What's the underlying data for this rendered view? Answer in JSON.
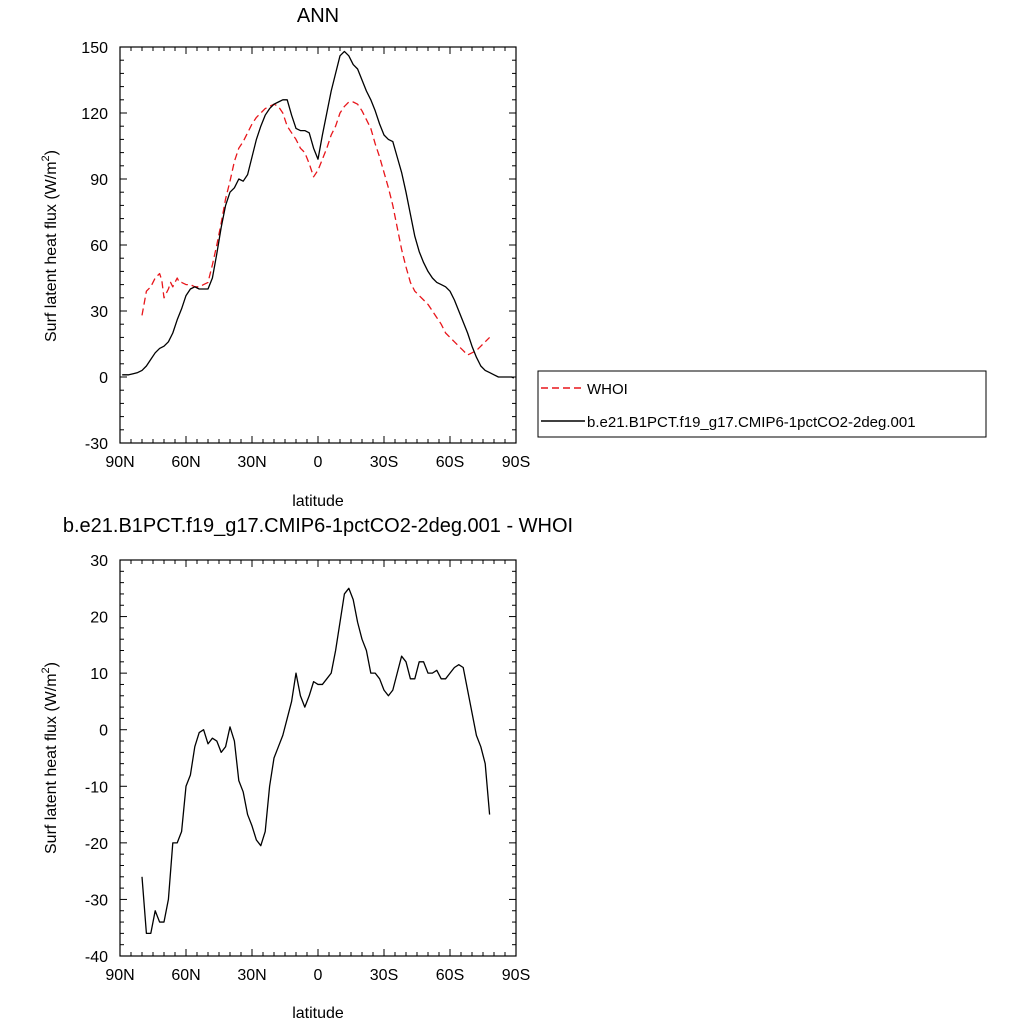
{
  "colors": {
    "model": "#000000",
    "obs": "#e8161b",
    "background": "#ffffff"
  },
  "chart_data": [
    {
      "type": "line",
      "title": "ANN",
      "xlabel": "latitude",
      "ylabel": "Surf latent heat flux (W/m",
      "ylabel_sup": "2",
      "ylabel_end": ")",
      "xlim": [
        90,
        -90
      ],
      "ylim": [
        -30,
        150
      ],
      "xticks": [
        90,
        60,
        30,
        0,
        -30,
        -60,
        -90
      ],
      "xtick_labels": [
        "90N",
        "60N",
        "30N",
        "0",
        "30S",
        "60S",
        "90S"
      ],
      "yticks": [
        -30,
        0,
        30,
        60,
        90,
        120,
        150
      ],
      "ytick_labels": [
        "-30",
        "0",
        "30",
        "60",
        "90",
        "120",
        "150"
      ],
      "grid": false,
      "legend_position": "right",
      "series": [
        {
          "name": "WHOI",
          "style": "dashed",
          "color": "#e8161b",
          "x": [
            80,
            78,
            76,
            74,
            72,
            71,
            70,
            68,
            67,
            66,
            65,
            64,
            63,
            62,
            60,
            58,
            56,
            54,
            52,
            50,
            48,
            46,
            44,
            42,
            40,
            38,
            36,
            34,
            32,
            30,
            28,
            26,
            24,
            22,
            20,
            18,
            16,
            14,
            12,
            10,
            8,
            6,
            4,
            2,
            0,
            -2,
            -4,
            -6,
            -8,
            -10,
            -12,
            -14,
            -16,
            -18,
            -20,
            -22,
            -24,
            -26,
            -28,
            -30,
            -32,
            -34,
            -36,
            -38,
            -40,
            -42,
            -44,
            -46,
            -48,
            -50,
            -52,
            -54,
            -56,
            -58,
            -60,
            -62,
            -64,
            -66,
            -68,
            -70,
            -72,
            -74,
            -76,
            -78
          ],
          "y": [
            28,
            39,
            41,
            45,
            47,
            44,
            36,
            40,
            43,
            41,
            43,
            45,
            43,
            43,
            42,
            42,
            41,
            41,
            42,
            43,
            51,
            60,
            70,
            81,
            89,
            98,
            104,
            107,
            111,
            115,
            118,
            120,
            122,
            123,
            124,
            123,
            120,
            114,
            111,
            108,
            104,
            102,
            97,
            91,
            94,
            99,
            104,
            110,
            114,
            120,
            123,
            125,
            125,
            124,
            121,
            117,
            113,
            106,
            100,
            93,
            86,
            78,
            68,
            58,
            50,
            43,
            39,
            37,
            35,
            33,
            30,
            27,
            24,
            20,
            18,
            16,
            14,
            12,
            10,
            11,
            12,
            14,
            16,
            18
          ]
        },
        {
          "name": "b.e21.B1PCT.f19_g17.CMIP6-1pctCO2-2deg.001",
          "style": "solid",
          "color": "#000000",
          "x": [
            89,
            88,
            86,
            84,
            82,
            80,
            78,
            76,
            74,
            72,
            70,
            68,
            66,
            64,
            62,
            60,
            58,
            56,
            54,
            52,
            50,
            48,
            46,
            44,
            42,
            40,
            38,
            36,
            34,
            32,
            30,
            28,
            26,
            24,
            22,
            20,
            18,
            16,
            14,
            12,
            10,
            8,
            6,
            4,
            2,
            0,
            -2,
            -4,
            -6,
            -8,
            -10,
            -12,
            -14,
            -16,
            -18,
            -20,
            -22,
            -24,
            -26,
            -28,
            -30,
            -32,
            -34,
            -36,
            -38,
            -40,
            -42,
            -44,
            -46,
            -48,
            -50,
            -52,
            -54,
            -56,
            -58,
            -60,
            -62,
            -64,
            -66,
            -68,
            -70,
            -72,
            -74,
            -76,
            -78,
            -80,
            -82,
            -84,
            -86,
            -88,
            -89
          ],
          "y": [
            1,
            1,
            1,
            1.5,
            2,
            3,
            5,
            8,
            11,
            13,
            14,
            16,
            20,
            26,
            31,
            37,
            40,
            41,
            40,
            40,
            40,
            45,
            56,
            68,
            78,
            84,
            86,
            90,
            89,
            92,
            100,
            108,
            114,
            119,
            122,
            124,
            125,
            126,
            126,
            119,
            113,
            112,
            112,
            111,
            104,
            99,
            110,
            120,
            130,
            138,
            146,
            148,
            146,
            142,
            140,
            135,
            130,
            126,
            121,
            115,
            110,
            108,
            107,
            100,
            93,
            84,
            74,
            64,
            57,
            52,
            48,
            45,
            43,
            42,
            41,
            39,
            35,
            30,
            25,
            20,
            14,
            9,
            5,
            3,
            2,
            1,
            0,
            0,
            0,
            0,
            -0.5
          ]
        }
      ]
    },
    {
      "type": "line",
      "title": "b.e21.B1PCT.f19_g17.CMIP6-1pctCO2-2deg.001 - WHOI",
      "xlabel": "latitude",
      "ylabel": "Surf latent heat flux (W/m",
      "ylabel_sup": "2",
      "ylabel_end": ")",
      "xlim": [
        90,
        -90
      ],
      "ylim": [
        -40,
        30
      ],
      "xticks": [
        90,
        60,
        30,
        0,
        -30,
        -60,
        -90
      ],
      "xtick_labels": [
        "90N",
        "60N",
        "30N",
        "0",
        "30S",
        "60S",
        "90S"
      ],
      "yticks": [
        -40,
        -30,
        -20,
        -10,
        0,
        10,
        20,
        30
      ],
      "ytick_labels": [
        "-40",
        "-30",
        "-20",
        "-10",
        "0",
        "10",
        "20",
        "30"
      ],
      "grid": false,
      "series": [
        {
          "style": "solid",
          "color": "#000000",
          "x": [
            80,
            78,
            76,
            74,
            72,
            70,
            68,
            66,
            64,
            62,
            60,
            58,
            56,
            54,
            52,
            50,
            48,
            46,
            44,
            42,
            40,
            38,
            36,
            34,
            32,
            30,
            28,
            26,
            24,
            22,
            20,
            18,
            16,
            14,
            12,
            10,
            8,
            6,
            4,
            2,
            0,
            -2,
            -4,
            -6,
            -8,
            -10,
            -12,
            -14,
            -16,
            -18,
            -20,
            -22,
            -24,
            -26,
            -28,
            -30,
            -32,
            -34,
            -36,
            -38,
            -40,
            -42,
            -44,
            -46,
            -48,
            -50,
            -52,
            -54,
            -56,
            -58,
            -60,
            -62,
            -64,
            -66,
            -68,
            -70,
            -72,
            -74,
            -76,
            -78
          ],
          "y": [
            -26,
            -36,
            -36,
            -32,
            -34,
            -34,
            -30,
            -20,
            -20,
            -18,
            -10,
            -8,
            -3,
            -0.5,
            0,
            -2.5,
            -1.5,
            -2,
            -4,
            -3,
            0.5,
            -2,
            -9,
            -11,
            -15,
            -17,
            -19.5,
            -20.5,
            -18,
            -10,
            -5,
            -3,
            -1,
            2,
            5,
            10,
            6,
            4,
            6,
            8.5,
            8,
            8,
            9,
            10,
            14,
            19,
            24,
            25,
            23,
            19,
            16,
            14,
            10,
            10,
            9,
            7,
            6,
            7,
            10,
            13,
            12,
            9,
            9,
            12,
            12,
            10,
            10,
            10.5,
            9,
            9,
            10,
            11,
            11.5,
            11,
            7,
            3,
            -1,
            -3,
            -6,
            -15
          ]
        }
      ]
    }
  ]
}
